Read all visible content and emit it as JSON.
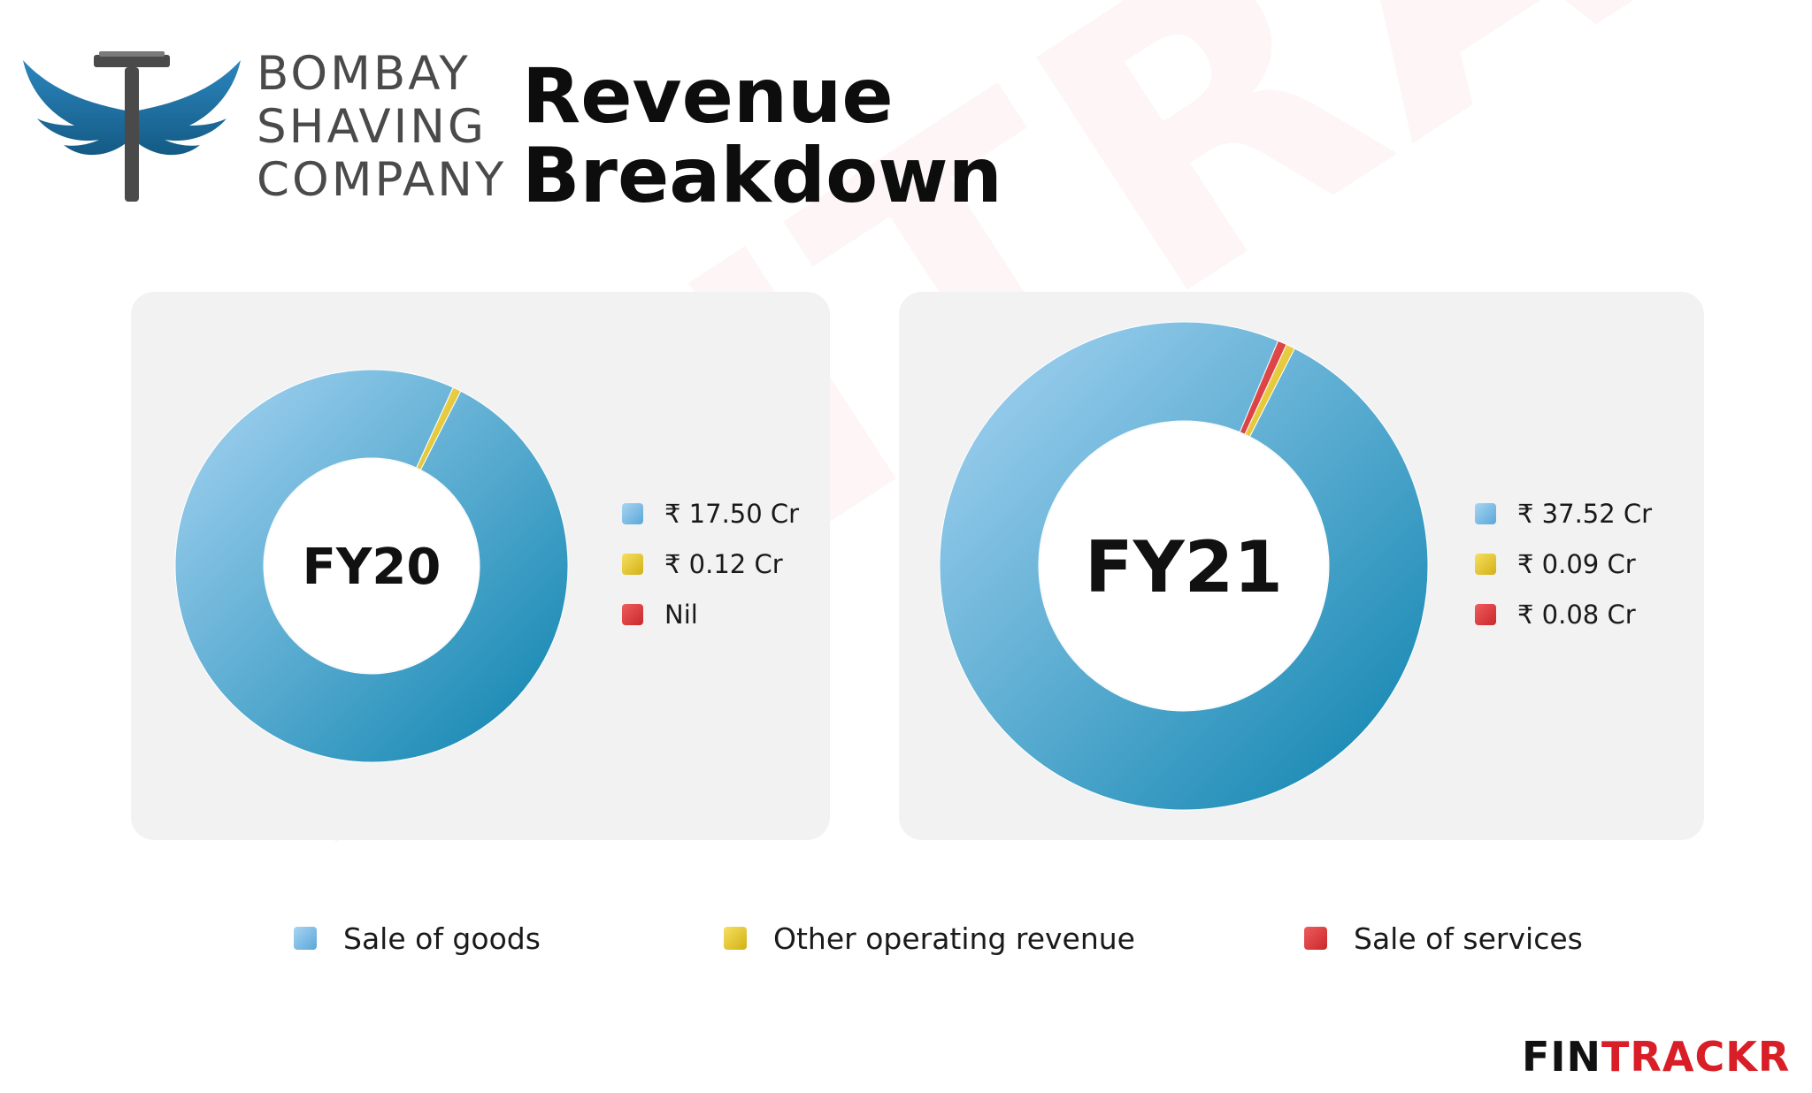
{
  "brand": {
    "lines": [
      "BOMBAY",
      "SHAVING",
      "COMPANY"
    ],
    "icon": "winged-razor-logo",
    "colors": {
      "wing": "#1f6f9c",
      "razor": "#4a4a4a"
    }
  },
  "headline": {
    "line1": "Revenue",
    "line2": "Breakdown"
  },
  "watermark_text": "FINTRACKR",
  "footer": {
    "part1": "FIN",
    "part2": "TRACKR",
    "color1": "#111111",
    "color2": "#d81e27"
  },
  "legend": [
    {
      "label": "Sale of goods",
      "color": "#6fb6e3"
    },
    {
      "label": "Other operating revenue",
      "color": "#e3c11e"
    },
    {
      "label": "Sale of services",
      "color": "#d9373a"
    }
  ],
  "chart_data": [
    {
      "type": "pie",
      "title": "FY20",
      "categories": [
        "Sale of goods",
        "Other operating revenue",
        "Sale of services"
      ],
      "values": [
        17.5,
        0.12,
        0
      ],
      "value_labels": [
        "₹ 17.50 Cr",
        "₹ 0.12 Cr",
        "Nil"
      ],
      "unit": "Cr",
      "colors": [
        "#6fb6e3",
        "#e3c11e",
        "#d9373a"
      ],
      "donut": true,
      "legend": "right"
    },
    {
      "type": "pie",
      "title": "FY21",
      "categories": [
        "Sale of goods",
        "Other operating revenue",
        "Sale of services"
      ],
      "values": [
        37.52,
        0.09,
        0.08
      ],
      "value_labels": [
        "₹ 37.52 Cr",
        "₹ 0.09 Cr",
        "₹ 0.08 Cr"
      ],
      "unit": "Cr",
      "colors": [
        "#6fb6e3",
        "#e3c11e",
        "#d9373a"
      ],
      "donut": true,
      "legend": "right"
    }
  ]
}
